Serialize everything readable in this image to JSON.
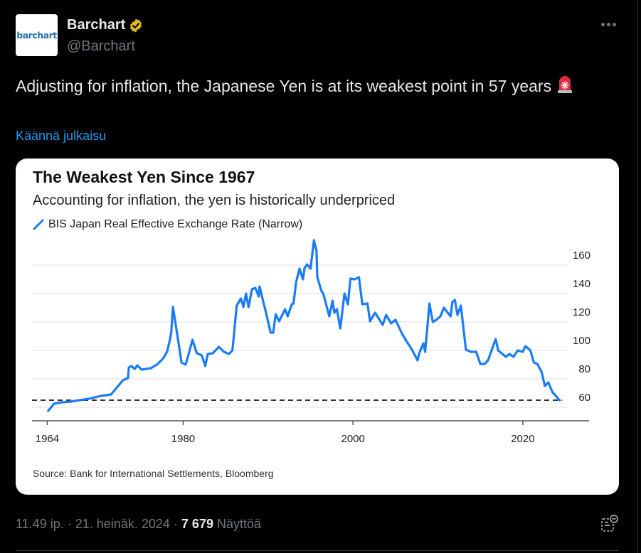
{
  "author": {
    "name": "Barchart",
    "handle": "@Barchart",
    "avatar_text": "barchart",
    "verified": true
  },
  "more_icon": "more-horizontal-icon",
  "tweet": {
    "text": "Adjusting for inflation, the Japanese Yen is at its weakest point in 57 years",
    "emoji": "rotating-light-siren",
    "translate_label": "Käännä julkaisu"
  },
  "card": {
    "title": "The Weakest Yen Since 1967",
    "subtitle": "Accounting for inflation, the yen is historically underpriced",
    "source": "Source: Bank for International Settlements, Bloomberg"
  },
  "chart_data": {
    "type": "line",
    "title": "The Weakest Yen Since 1967",
    "subtitle": "Accounting for inflation, the yen is historically underpriced",
    "xlabel": "",
    "ylabel": "",
    "xlim": [
      1962.2,
      2027.8
    ],
    "ylim": [
      50,
      180
    ],
    "yticks": [
      60,
      80,
      100,
      120,
      140,
      160
    ],
    "xticks": [
      1964,
      1980,
      2000,
      2020
    ],
    "grid": true,
    "legend_placement": "top-left",
    "reference_line": {
      "value": 65,
      "style": "dashed",
      "color": "#333333"
    },
    "series": [
      {
        "name": "BIS Japan Real Effective Exchange Rate (Narrow)",
        "color": "#1a7cf5",
        "x": [
          1964.1,
          1964.8,
          1965.7,
          1966.8,
          1967.8,
          1968.9,
          1970.3,
          1971.5,
          1972.2,
          1972.9,
          1973.5,
          1973.6,
          1973.9,
          1974.3,
          1974.6,
          1975.1,
          1976.2,
          1976.9,
          1977.6,
          1978.1,
          1978.4,
          1978.6,
          1978.8,
          1979.4,
          1979.8,
          1980.3,
          1980.6,
          1981.1,
          1981.6,
          1982.2,
          1982.6,
          1982.9,
          1983.5,
          1984.2,
          1984.8,
          1985.4,
          1985.8,
          1986.0,
          1986.3,
          1986.8,
          1987.1,
          1987.4,
          1987.7,
          1988.1,
          1988.5,
          1988.9,
          1989.0,
          1989.4,
          1989.8,
          1990.3,
          1990.6,
          1990.9,
          1991.3,
          1992.0,
          1992.3,
          1992.8,
          1993.0,
          1993.3,
          1993.7,
          1994.1,
          1994.3,
          1994.6,
          1995.0,
          1995.4,
          1995.7,
          1995.8,
          1996.3,
          1996.5,
          1997.2,
          1997.6,
          1997.8,
          1998.1,
          1998.5,
          1999.0,
          1999.4,
          1999.7,
          2000.2,
          2000.7,
          2001.1,
          2001.7,
          2002.0,
          2002.6,
          2003.5,
          2003.9,
          2004.5,
          2005.0,
          2005.8,
          2006.3,
          2007.0,
          2007.6,
          2007.8,
          2008.3,
          2008.5,
          2009.0,
          2009.4,
          2009.8,
          2010.3,
          2010.7,
          2011.5,
          2011.7,
          2012.0,
          2012.3,
          2012.7,
          2013.3,
          2013.9,
          2014.5,
          2015.0,
          2015.5,
          2015.9,
          2016.5,
          2016.8,
          2017.1,
          2018.0,
          2018.4,
          2018.9,
          2019.4,
          2020.0,
          2020.3,
          2020.9,
          2021.3,
          2021.7,
          2022.2,
          2022.6,
          2023.0,
          2023.5,
          2023.9,
          2024.3
        ],
        "values": [
          57.5,
          62.5,
          63.5,
          64,
          65,
          66,
          68,
          69,
          74,
          79,
          80.5,
          88,
          89,
          87,
          89.5,
          86.5,
          87.5,
          90,
          94,
          99,
          106.5,
          112.5,
          130.5,
          107.5,
          91.5,
          90,
          96.5,
          107.5,
          98,
          96.5,
          89,
          97.5,
          98,
          102.5,
          99,
          97.5,
          100,
          112.5,
          131.5,
          136.5,
          130.5,
          140,
          130.5,
          143,
          144,
          138,
          145,
          135,
          125.5,
          112.5,
          112.5,
          125.5,
          120.5,
          129,
          124,
          132.5,
          133,
          148,
          157.5,
          150,
          158,
          160.5,
          157.5,
          177.5,
          170,
          151.5,
          141.5,
          140,
          124,
          135,
          126.5,
          129,
          115.5,
          140,
          132.5,
          150.5,
          150,
          151.5,
          132.5,
          133,
          120.5,
          126.5,
          118,
          125,
          119,
          121.5,
          111.5,
          106.5,
          100,
          93,
          98,
          105,
          99,
          133,
          120,
          121.5,
          124,
          130,
          124,
          134,
          135.5,
          125,
          131.5,
          100.5,
          99,
          99,
          90.5,
          90.5,
          93,
          103,
          108,
          100,
          95.5,
          97.5,
          95.5,
          100,
          99,
          103,
          100,
          91.5,
          90.5,
          85,
          75,
          77.5,
          70.5,
          68,
          65
        ]
      }
    ]
  },
  "footer": {
    "time": "11.49 ip.",
    "date": "21. heinäk. 2024",
    "separator": "·",
    "views_count": "7 679",
    "views_label": "Näyttöä",
    "analytics_icon": "post-analytics-icon"
  }
}
